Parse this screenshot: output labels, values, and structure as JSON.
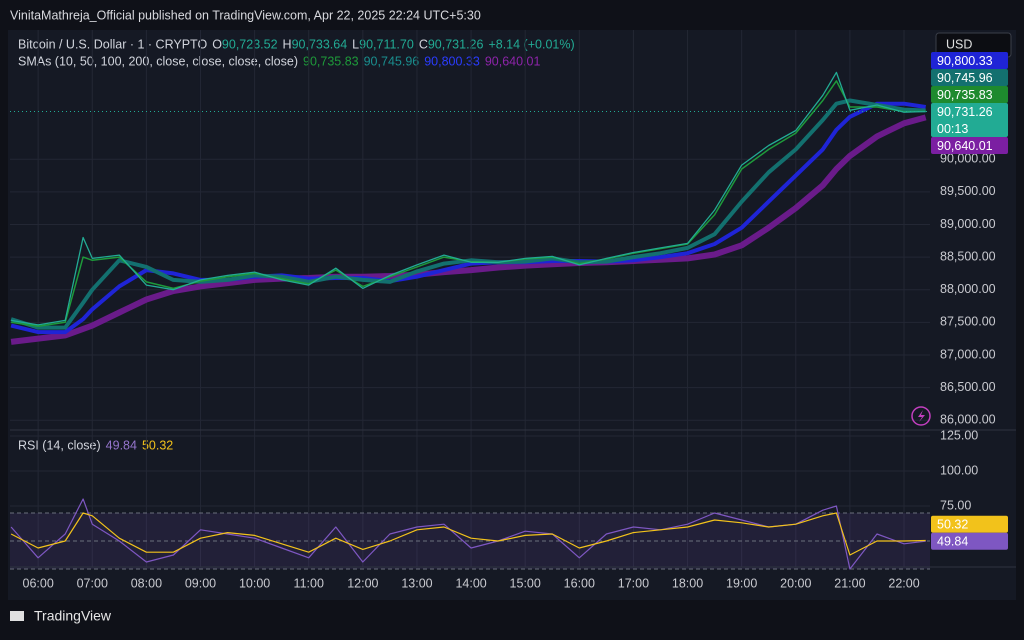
{
  "header": {
    "publisher": "VinitaMathreja_Official published on TradingView.com, Apr 22, 2025 22:24 UTC+5:30"
  },
  "footer": {
    "brand": "TradingView"
  },
  "currency": "USD",
  "chart_data": {
    "type": "line",
    "title": "Bitcoin / U.S. Dollar · 1 · CRYPTO",
    "quote": [
      {
        "key": "O",
        "value": "90,723.52"
      },
      {
        "key": "H",
        "value": "90,733.64"
      },
      {
        "key": "L",
        "value": "90,711.70"
      },
      {
        "key": "C",
        "value": "90,731.26"
      }
    ],
    "change": "+8.14 (+0.01%)",
    "sma_legend": "SMAs (10, 50, 100, 200, close, close, close, close)",
    "sma_values": [
      "90,735.83",
      "90,745.96",
      "90,800.33",
      "90,640.01"
    ],
    "x": [
      5.5,
      6,
      6.5,
      6.83,
      7,
      7.5,
      8,
      8.5,
      9,
      9.5,
      10,
      10.5,
      11,
      11.5,
      12,
      12.5,
      13,
      13.5,
      14,
      14.5,
      15,
      15.5,
      16,
      16.5,
      17,
      17.5,
      18,
      18.5,
      19,
      19.5,
      20,
      20.5,
      20.75,
      21,
      21.5,
      22,
      22.4
    ],
    "series": [
      {
        "color": "#22ab94",
        "width": 1.3,
        "values": [
          87530,
          87460,
          87530,
          88800,
          88480,
          88530,
          88070,
          88000,
          88150,
          88220,
          88270,
          88150,
          88070,
          88330,
          88020,
          88220,
          88380,
          88530,
          88420,
          88420,
          88480,
          88510,
          88380,
          88480,
          88570,
          88640,
          88710,
          89220,
          89910,
          90210,
          90440,
          90980,
          91330,
          90750,
          90830,
          90720,
          90731.26
        ]
      },
      {
        "color": "#1e9a3a",
        "width": 1.5,
        "values": [
          87500,
          87440,
          87500,
          88500,
          88450,
          88500,
          88120,
          88020,
          88130,
          88200,
          88250,
          88170,
          88090,
          88300,
          88050,
          88200,
          88350,
          88500,
          88430,
          88420,
          88470,
          88500,
          88400,
          88470,
          88560,
          88630,
          88700,
          89150,
          89850,
          90150,
          90400,
          90900,
          91200,
          90800,
          90800,
          90730,
          90735.83
        ]
      },
      {
        "color": "#13706f",
        "width": 4,
        "values": [
          87550,
          87420,
          87420,
          87800,
          88000,
          88450,
          88350,
          88150,
          88120,
          88150,
          88220,
          88200,
          88120,
          88200,
          88150,
          88120,
          88280,
          88400,
          88450,
          88420,
          88430,
          88480,
          88420,
          88430,
          88500,
          88560,
          88640,
          88850,
          89350,
          89800,
          90150,
          90600,
          90850,
          90900,
          90830,
          90760,
          90745.96
        ]
      },
      {
        "color": "#1f24d6",
        "width": 4,
        "values": [
          87450,
          87350,
          87350,
          87550,
          87700,
          88050,
          88300,
          88250,
          88150,
          88150,
          88200,
          88220,
          88170,
          88180,
          88180,
          88130,
          88200,
          88300,
          88400,
          88420,
          88420,
          88440,
          88440,
          88430,
          88450,
          88500,
          88560,
          88700,
          88950,
          89350,
          89750,
          90150,
          90450,
          90650,
          90850,
          90850,
          90800.33
        ]
      },
      {
        "color": "#6a1b8a",
        "width": 6,
        "values": [
          87200,
          87250,
          87300,
          87400,
          87450,
          87650,
          87850,
          87980,
          88050,
          88100,
          88150,
          88170,
          88180,
          88200,
          88200,
          88210,
          88230,
          88270,
          88300,
          88340,
          88370,
          88390,
          88410,
          88420,
          88440,
          88460,
          88480,
          88540,
          88680,
          88950,
          89250,
          89600,
          89850,
          90050,
          90350,
          90550,
          90640.01
        ]
      }
    ],
    "xlim": [
      5.48,
      22.48
    ],
    "xticks": [
      {
        "value": 6,
        "label": "06:00"
      },
      {
        "value": 7,
        "label": "07:00"
      },
      {
        "value": 8,
        "label": "08:00"
      },
      {
        "value": 9,
        "label": "09:00"
      },
      {
        "value": 10,
        "label": "10:00"
      },
      {
        "value": 11,
        "label": "11:00"
      },
      {
        "value": 12,
        "label": "12:00"
      },
      {
        "value": 13,
        "label": "13:00"
      },
      {
        "value": 14,
        "label": "14:00"
      },
      {
        "value": 15,
        "label": "15:00"
      },
      {
        "value": 16,
        "label": "16:00"
      },
      {
        "value": 17,
        "label": "17:00"
      },
      {
        "value": 18,
        "label": "18:00"
      },
      {
        "value": 19,
        "label": "19:00"
      },
      {
        "value": 20,
        "label": "20:00"
      },
      {
        "value": 21,
        "label": "21:00"
      },
      {
        "value": 22,
        "label": "22:00"
      }
    ],
    "ylim": [
      85850,
      91980
    ],
    "yticks": [
      {
        "value": 86000,
        "label": "86,000.00"
      },
      {
        "value": 86500,
        "label": "86,500.00"
      },
      {
        "value": 87000,
        "label": "87,000.00"
      },
      {
        "value": 87500,
        "label": "87,500.00"
      },
      {
        "value": 88000,
        "label": "88,000.00"
      },
      {
        "value": 88500,
        "label": "88,500.00"
      },
      {
        "value": 89000,
        "label": "89,000.00"
      },
      {
        "value": 89500,
        "label": "89,500.00"
      },
      {
        "value": 90000,
        "label": "90,000.00"
      }
    ],
    "price_tags": [
      {
        "value": 90800.33,
        "label": "90,800.33",
        "color": "#1f24d6"
      },
      {
        "value": 90745.96,
        "label": "90,745.96",
        "color": "#13706f"
      },
      {
        "value": 90735.83,
        "label": "90,735.83",
        "color": "#1e8a2e"
      },
      {
        "value": 90731.26,
        "label": "90,731.26",
        "color": "#22ab94",
        "countdown": "00:13"
      },
      {
        "value": 90640.01,
        "label": "90,640.01",
        "color": "#7b1fa2"
      }
    ],
    "grid": true,
    "rsi": {
      "title": "RSI (14, close)",
      "value_texts": [
        "49.84",
        "50.32"
      ],
      "series": [
        {
          "color": "#7e57c2",
          "width": 1.2,
          "values": [
            60,
            38,
            55,
            80,
            62,
            50,
            35,
            40,
            58,
            55,
            52,
            45,
            38,
            60,
            35,
            55,
            60,
            62,
            45,
            50,
            57,
            55,
            38,
            55,
            60,
            58,
            62,
            70,
            65,
            60,
            62,
            72,
            75,
            30,
            55,
            48,
            49.84
          ]
        },
        {
          "color": "#f2c21b",
          "width": 1.2,
          "values": [
            55,
            45,
            50,
            70,
            68,
            52,
            42,
            42,
            52,
            56,
            54,
            48,
            42,
            52,
            44,
            50,
            58,
            60,
            52,
            50,
            54,
            55,
            45,
            50,
            56,
            58,
            60,
            65,
            63,
            60,
            62,
            68,
            70,
            40,
            50,
            50,
            50.32
          ]
        }
      ],
      "ylim": [
        31.4,
        129.3
      ],
      "yticks": [
        {
          "value": 75,
          "label": "75.00"
        },
        {
          "value": 100,
          "label": "100.00"
        },
        {
          "value": 125,
          "label": "125.00"
        }
      ],
      "bands": [
        70,
        50,
        30
      ],
      "tags": [
        {
          "value": 50.32,
          "label": "50.32",
          "color": "#f2c21b"
        },
        {
          "value": 49.84,
          "label": "49.84",
          "color": "#7e57c2"
        }
      ]
    }
  }
}
